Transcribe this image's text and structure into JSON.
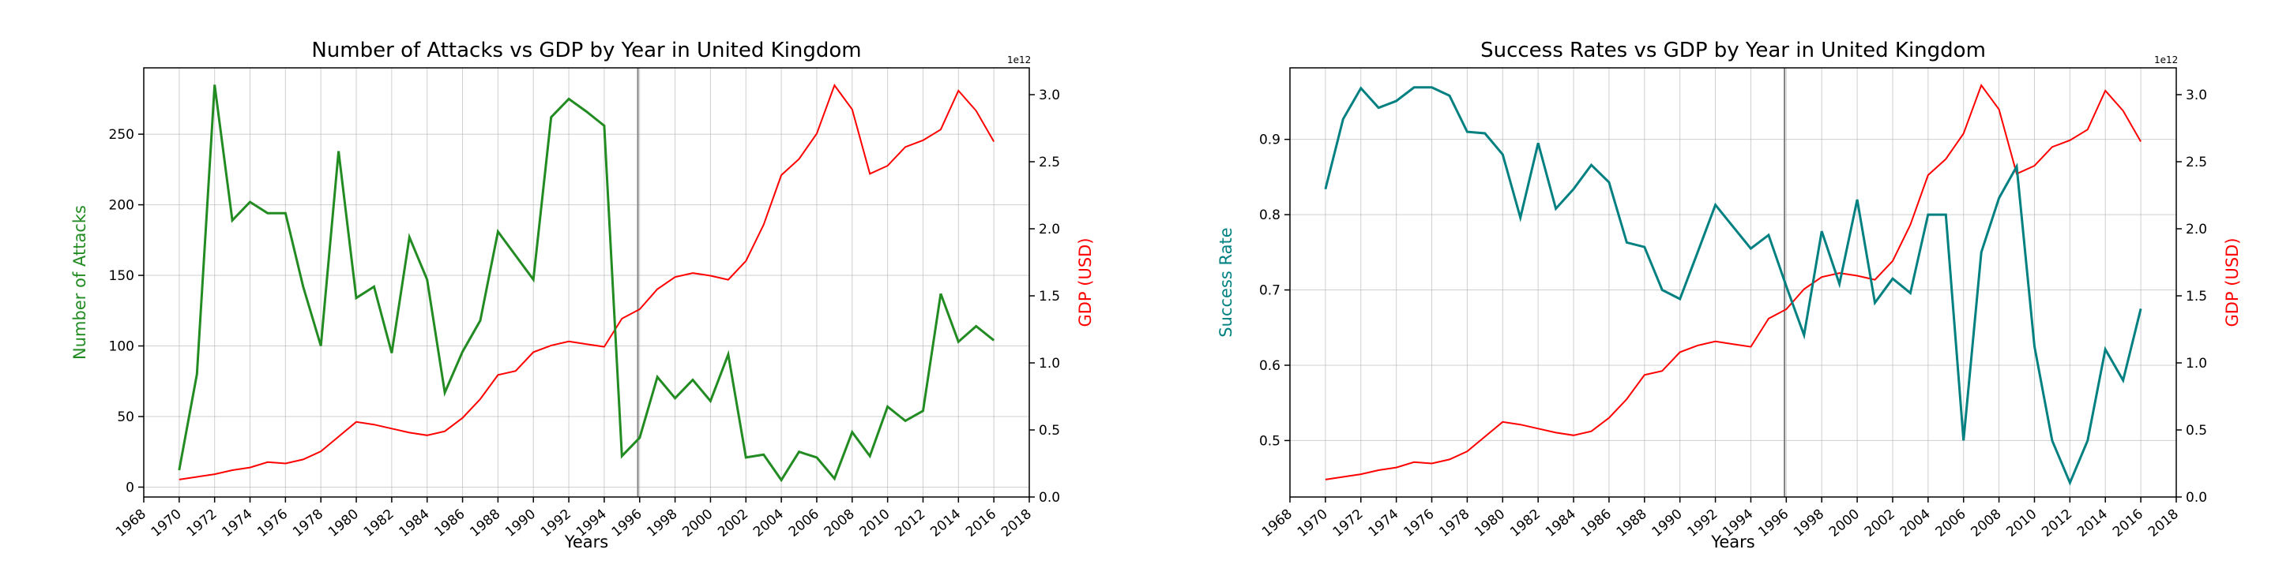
{
  "chart_data": [
    {
      "type": "line",
      "title": "Number of Attacks vs GDP by Year in United Kingdom",
      "xlabel": "Years",
      "ylabel": "Number of Attacks",
      "y2label": "GDP (USD)",
      "y2_offset_label": "1e12",
      "xlim": [
        1968,
        2018
      ],
      "xticks": [
        1968,
        1970,
        1972,
        1974,
        1976,
        1978,
        1980,
        1982,
        1984,
        1986,
        1988,
        1990,
        1992,
        1994,
        1996,
        1998,
        2000,
        2002,
        2004,
        2006,
        2008,
        2010,
        2012,
        2014,
        2016,
        2018
      ],
      "ylim": [
        -7,
        297
      ],
      "yticks": [
        0,
        50,
        100,
        150,
        200,
        250
      ],
      "y2lim": [
        0,
        3.2
      ],
      "y2ticks": [
        0.0,
        0.5,
        1.0,
        1.5,
        2.0,
        2.5,
        3.0
      ],
      "vline_x": 1995.9,
      "grid": true,
      "primary_color": "#228b22",
      "secondary_color": "#ff0000",
      "x": [
        1970,
        1971,
        1972,
        1973,
        1974,
        1975,
        1976,
        1977,
        1978,
        1979,
        1980,
        1981,
        1982,
        1983,
        1984,
        1985,
        1986,
        1987,
        1988,
        1989,
        1990,
        1991,
        1992,
        1993,
        1994,
        1995,
        1996,
        1997,
        1998,
        1999,
        2000,
        2001,
        2002,
        2003,
        2004,
        2005,
        2006,
        2007,
        2008,
        2009,
        2010,
        2011,
        2012,
        2013,
        2014,
        2015,
        2016
      ],
      "primary_values": [
        12,
        80,
        285,
        189,
        202,
        194,
        194,
        142,
        100,
        238,
        134,
        142,
        95,
        177,
        147,
        67,
        96,
        118,
        181,
        164,
        147,
        262,
        275,
        266,
        256,
        22,
        35,
        78,
        63,
        76,
        61,
        94,
        21,
        23,
        5,
        25,
        21,
        6,
        39,
        22,
        57,
        47,
        54,
        137,
        103,
        114,
        104
      ],
      "secondary_values": [
        0.13,
        0.15,
        0.17,
        0.2,
        0.22,
        0.26,
        0.25,
        0.28,
        0.34,
        0.45,
        0.56,
        0.54,
        0.51,
        0.48,
        0.46,
        0.49,
        0.59,
        0.73,
        0.91,
        0.94,
        1.08,
        1.13,
        1.16,
        1.14,
        1.12,
        1.33,
        1.4,
        1.55,
        1.64,
        1.67,
        1.65,
        1.62,
        1.76,
        2.03,
        2.4,
        2.52,
        2.71,
        3.07,
        2.89,
        2.41,
        2.47,
        2.61,
        2.66,
        2.74,
        3.03,
        2.88,
        2.65
      ]
    },
    {
      "type": "line",
      "title": "Success Rates vs GDP by Year in United Kingdom",
      "xlabel": "Years",
      "ylabel": "Success Rate",
      "y2label": "GDP (USD)",
      "y2_offset_label": "1e12",
      "xlim": [
        1968,
        2018
      ],
      "xticks": [
        1968,
        1970,
        1972,
        1974,
        1976,
        1978,
        1980,
        1982,
        1984,
        1986,
        1988,
        1990,
        1992,
        1994,
        1996,
        1998,
        2000,
        2002,
        2004,
        2006,
        2008,
        2010,
        2012,
        2014,
        2016,
        2018
      ],
      "ylim": [
        0.425,
        0.995
      ],
      "yticks": [
        0.5,
        0.6,
        0.7,
        0.8,
        0.9
      ],
      "y2lim": [
        0,
        3.2
      ],
      "y2ticks": [
        0.0,
        0.5,
        1.0,
        1.5,
        2.0,
        2.5,
        3.0
      ],
      "vline_x": 1995.9,
      "grid": true,
      "primary_color": "#008080",
      "secondary_color": "#ff0000",
      "x": [
        1970,
        1971,
        1972,
        1973,
        1974,
        1975,
        1976,
        1977,
        1978,
        1979,
        1980,
        1981,
        1982,
        1983,
        1984,
        1985,
        1986,
        1987,
        1988,
        1989,
        1990,
        1991,
        1992,
        1993,
        1994,
        1995,
        1996,
        1997,
        1998,
        1999,
        2000,
        2001,
        2002,
        2003,
        2004,
        2005,
        2006,
        2007,
        2008,
        2009,
        2010,
        2011,
        2012,
        2013,
        2014,
        2015,
        2016
      ],
      "primary_values": [
        0.834,
        0.927,
        0.968,
        0.942,
        0.951,
        0.969,
        0.969,
        0.958,
        0.91,
        0.908,
        0.88,
        0.796,
        0.895,
        0.808,
        0.834,
        0.866,
        0.843,
        0.763,
        0.757,
        0.7,
        0.688,
        0.75,
        0.813,
        0.784,
        0.755,
        0.773,
        0.705,
        0.64,
        0.778,
        0.708,
        0.82,
        0.683,
        0.715,
        0.696,
        0.8,
        0.8,
        0.5,
        0.75,
        0.822,
        0.864,
        0.625,
        0.5,
        0.444,
        0.5,
        0.621,
        0.58,
        0.675
      ],
      "secondary_values": [
        0.13,
        0.15,
        0.17,
        0.2,
        0.22,
        0.26,
        0.25,
        0.28,
        0.34,
        0.45,
        0.56,
        0.54,
        0.51,
        0.48,
        0.46,
        0.49,
        0.59,
        0.73,
        0.91,
        0.94,
        1.08,
        1.13,
        1.16,
        1.14,
        1.12,
        1.33,
        1.4,
        1.55,
        1.64,
        1.67,
        1.65,
        1.62,
        1.76,
        2.03,
        2.4,
        2.52,
        2.71,
        3.07,
        2.89,
        2.41,
        2.47,
        2.61,
        2.66,
        2.74,
        3.03,
        2.88,
        2.65
      ]
    }
  ]
}
